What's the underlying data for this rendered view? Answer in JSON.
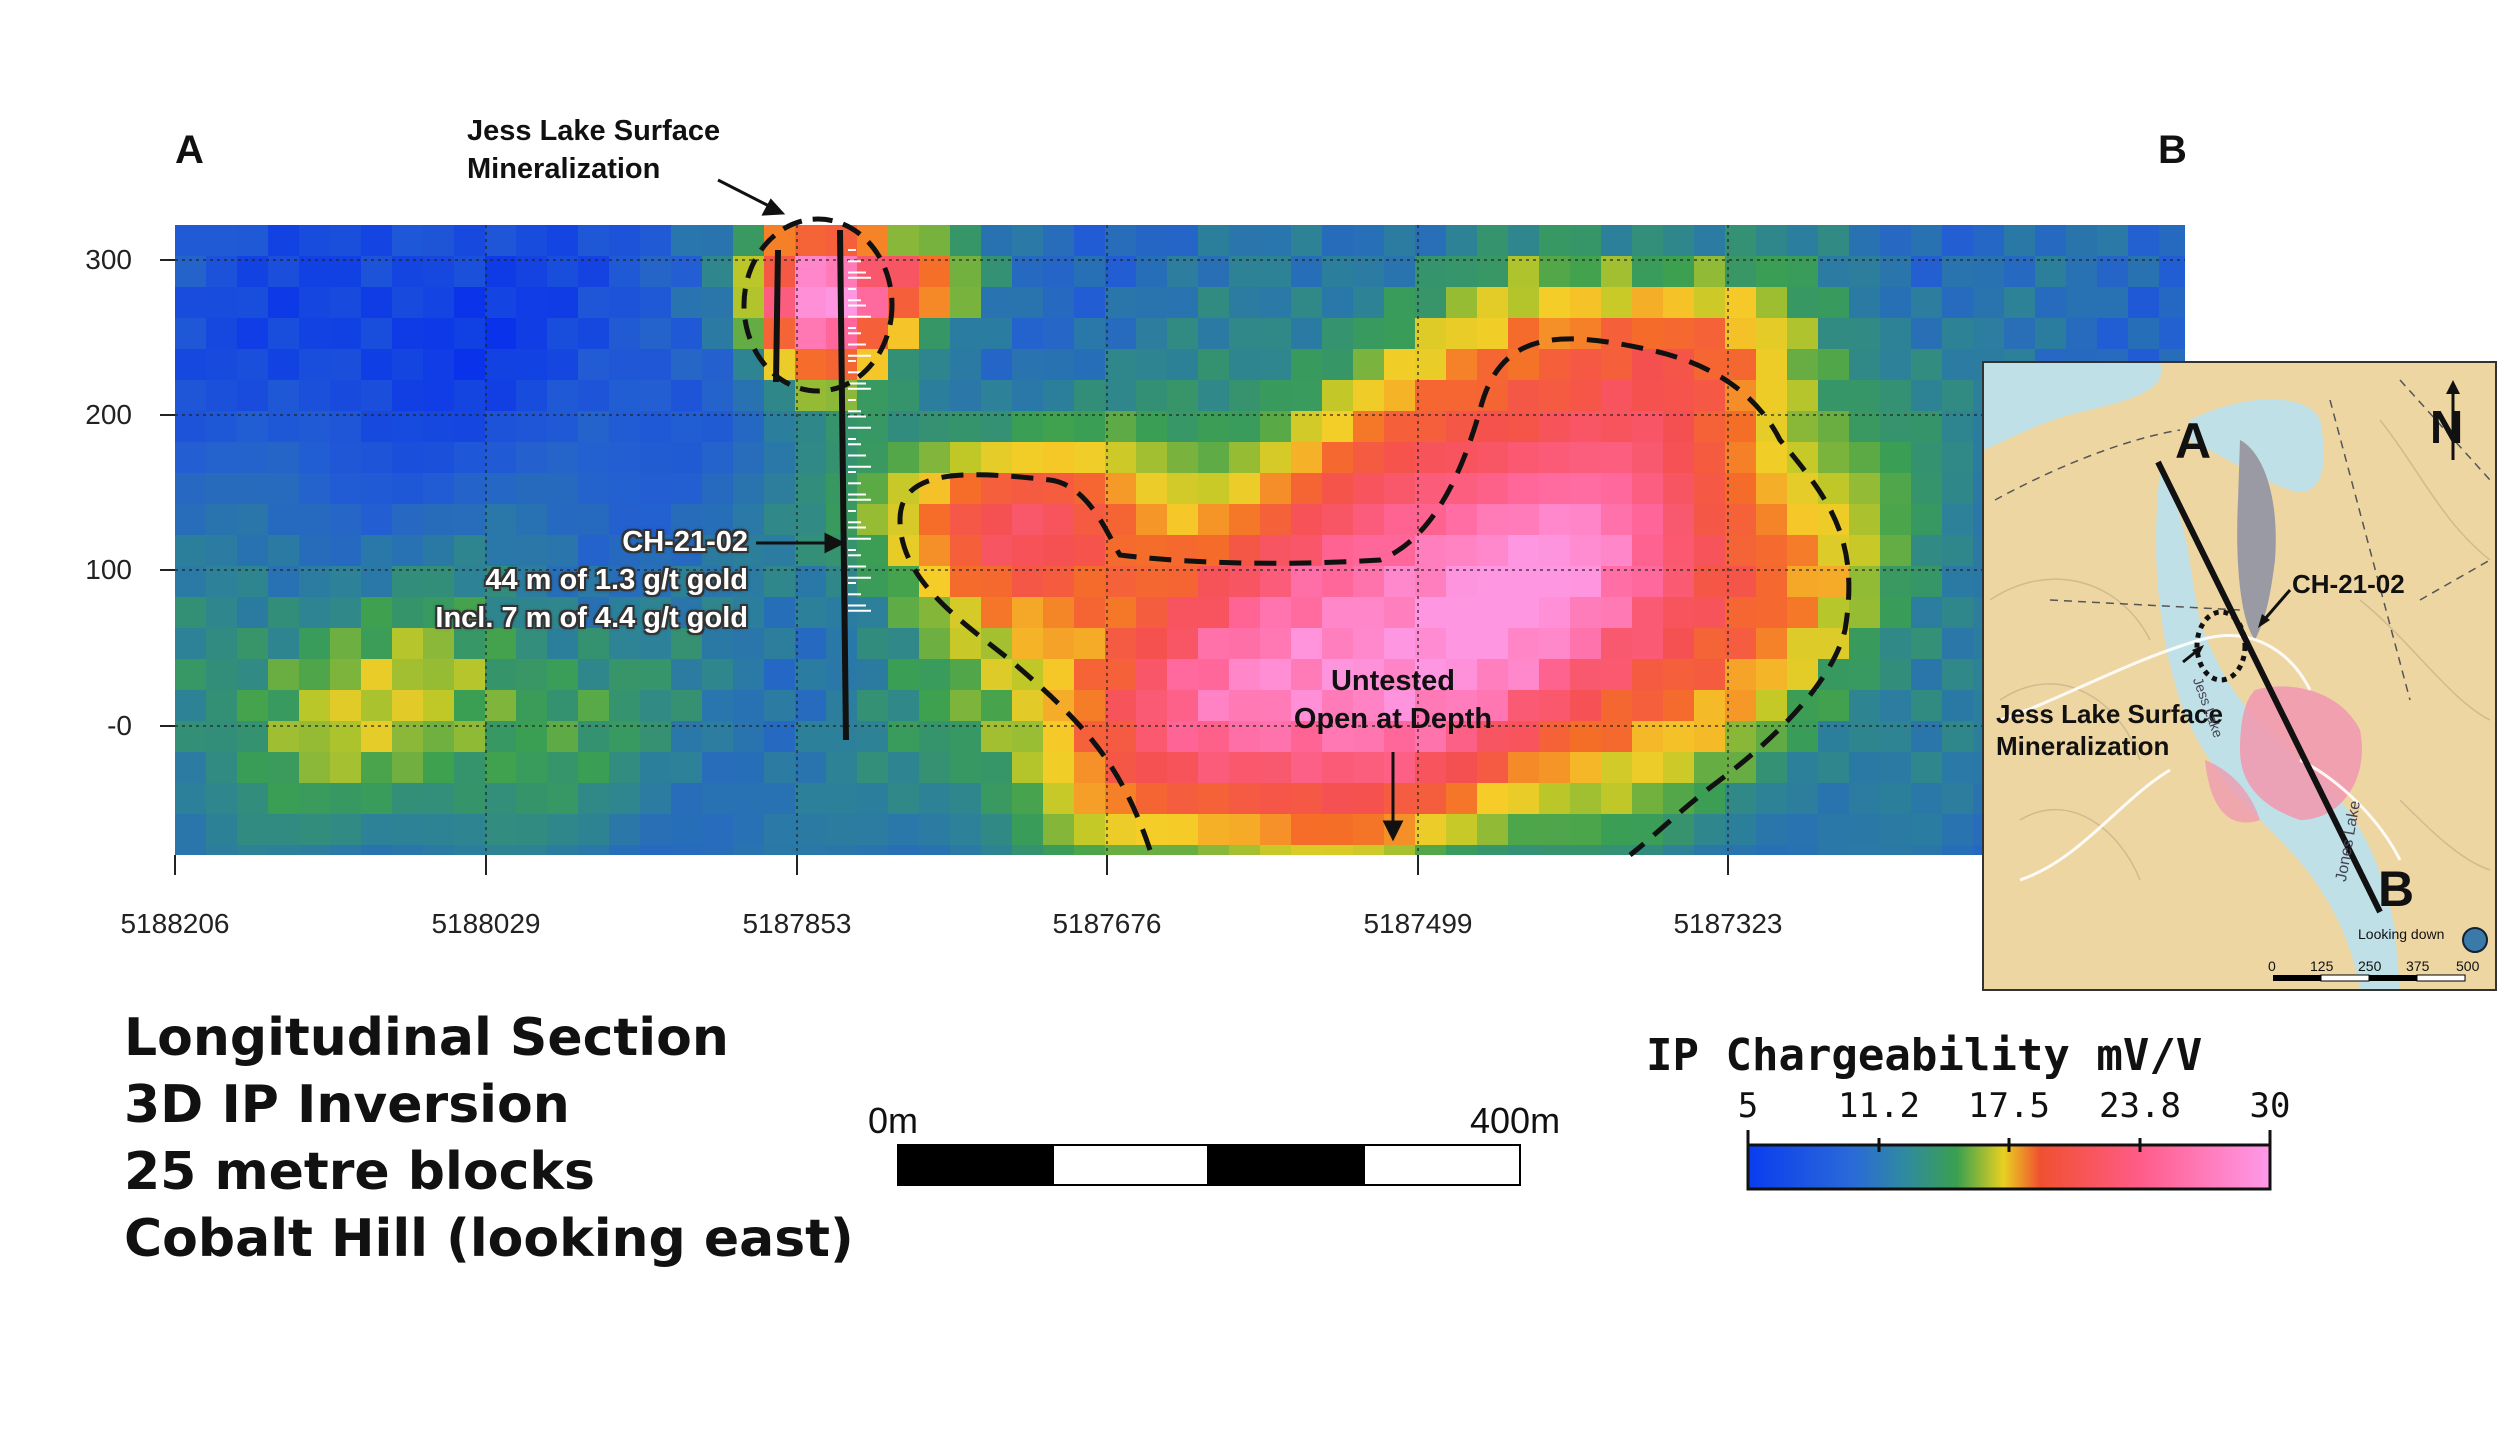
{
  "section": {
    "label_left": "A",
    "label_right": "B",
    "y_ticks": [
      "300",
      "200",
      "100",
      "-0"
    ],
    "x_ticks": [
      "5188206",
      "5188029",
      "5187853",
      "5187676",
      "5187499",
      "5187323"
    ],
    "annotations": {
      "jess_lake_line1": "Jess Lake Surface",
      "jess_lake_line2": "Mineralization",
      "hole_name": "CH-21-02",
      "hole_result1": "44 m of 1.3 g/t gold",
      "hole_result2": "Incl. 7 m of 4.4 g/t gold",
      "untested_line1": "Untested",
      "untested_line2": "Open at Depth"
    }
  },
  "title": {
    "line1": "Longitudinal Section",
    "line2": "3D IP Inversion",
    "line3": "25 metre blocks",
    "line4": "Cobalt Hill (looking east)"
  },
  "scale_bar": {
    "left_label": "0m",
    "right_label": "400m"
  },
  "colorbar": {
    "title": "IP Chargeability mV/V",
    "ticks": [
      "5",
      "11.2",
      "17.5",
      "23.8",
      "30"
    ],
    "colors": [
      "#0a3cf0",
      "#2a7ac0",
      "#3aa055",
      "#f0d020",
      "#f04848",
      "#ff66b0",
      "#ff99e8"
    ]
  },
  "inset_map": {
    "label_a": "A",
    "label_b": "B",
    "north": "N",
    "hole_name": "CH-21-02",
    "jess_line1": "Jess Lake Surface",
    "jess_line2": "Mineralization",
    "lake_text1": "Jess Lake",
    "lake_text2": "Jones Lake",
    "looking": "Looking down",
    "scale_ticks": [
      "0",
      "125",
      "250",
      "375",
      "500"
    ]
  }
}
